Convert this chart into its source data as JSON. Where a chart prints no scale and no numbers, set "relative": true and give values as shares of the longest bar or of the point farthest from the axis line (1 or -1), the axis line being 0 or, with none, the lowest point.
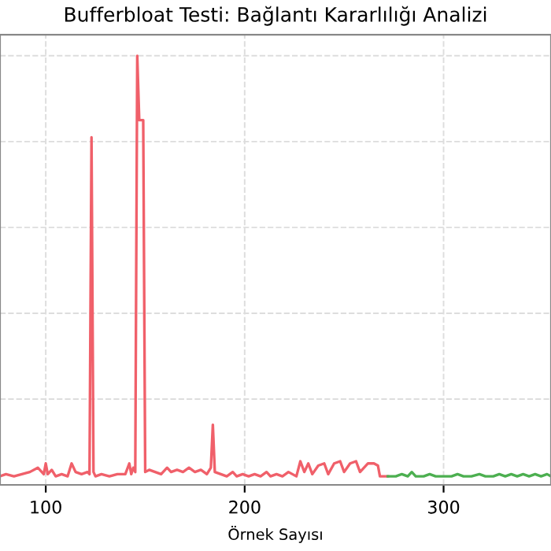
{
  "chart_data": {
    "type": "line",
    "title": "Bufferbloat Testi: Bağlantı Kararlılığı Analizi",
    "xlabel": "Örnek Sayısı",
    "relative": true,
    "grid": true,
    "tick_labels": "x",
    "xlim": [
      77,
      354
    ],
    "xticks": [
      100,
      200,
      300
    ],
    "series": [
      {
        "color": "#f0606a",
        "x": [
          77,
          80,
          84,
          88,
          92,
          96,
          99,
          100,
          101,
          103,
          105,
          108,
          111,
          113,
          115,
          118,
          121,
          122,
          123,
          124,
          125,
          128,
          132,
          136,
          140,
          142,
          143,
          144,
          145,
          146,
          147,
          149,
          150,
          152,
          155,
          158,
          161,
          163,
          166,
          169,
          172,
          175,
          178,
          181,
          183,
          184,
          185,
          188,
          191,
          194,
          196,
          199,
          202,
          205,
          208,
          211,
          213,
          216,
          219,
          222,
          226,
          228,
          230,
          232,
          234,
          237,
          240,
          242,
          245,
          248,
          250,
          253,
          256,
          258,
          262,
          265,
          267,
          268,
          272
        ],
        "values": [
          0.02,
          0.025,
          0.02,
          0.025,
          0.03,
          0.04,
          0.025,
          0.05,
          0.025,
          0.035,
          0.02,
          0.025,
          0.02,
          0.05,
          0.03,
          0.025,
          0.03,
          0.025,
          0.81,
          0.03,
          0.02,
          0.025,
          0.02,
          0.025,
          0.025,
          0.05,
          0.025,
          0.04,
          0.03,
          1.0,
          0.85,
          0.85,
          0.03,
          0.035,
          0.03,
          0.025,
          0.04,
          0.03,
          0.035,
          0.03,
          0.04,
          0.03,
          0.035,
          0.025,
          0.04,
          0.14,
          0.03,
          0.025,
          0.02,
          0.03,
          0.02,
          0.025,
          0.02,
          0.025,
          0.02,
          0.03,
          0.02,
          0.025,
          0.02,
          0.03,
          0.02,
          0.055,
          0.03,
          0.05,
          0.025,
          0.045,
          0.05,
          0.025,
          0.05,
          0.055,
          0.03,
          0.05,
          0.055,
          0.03,
          0.05,
          0.05,
          0.045,
          0.02,
          0.02
        ]
      },
      {
        "color": "#4caf50",
        "x": [
          272,
          276,
          279,
          282,
          284,
          286,
          290,
          293,
          296,
          300,
          304,
          307,
          310,
          314,
          318,
          321,
          325,
          328,
          331,
          334,
          337,
          340,
          343,
          346,
          349,
          352,
          354
        ],
        "values": [
          0.02,
          0.02,
          0.025,
          0.02,
          0.03,
          0.02,
          0.02,
          0.025,
          0.02,
          0.02,
          0.02,
          0.025,
          0.02,
          0.02,
          0.025,
          0.02,
          0.02,
          0.025,
          0.02,
          0.025,
          0.02,
          0.025,
          0.02,
          0.025,
          0.02,
          0.025,
          0.02
        ]
      }
    ]
  }
}
